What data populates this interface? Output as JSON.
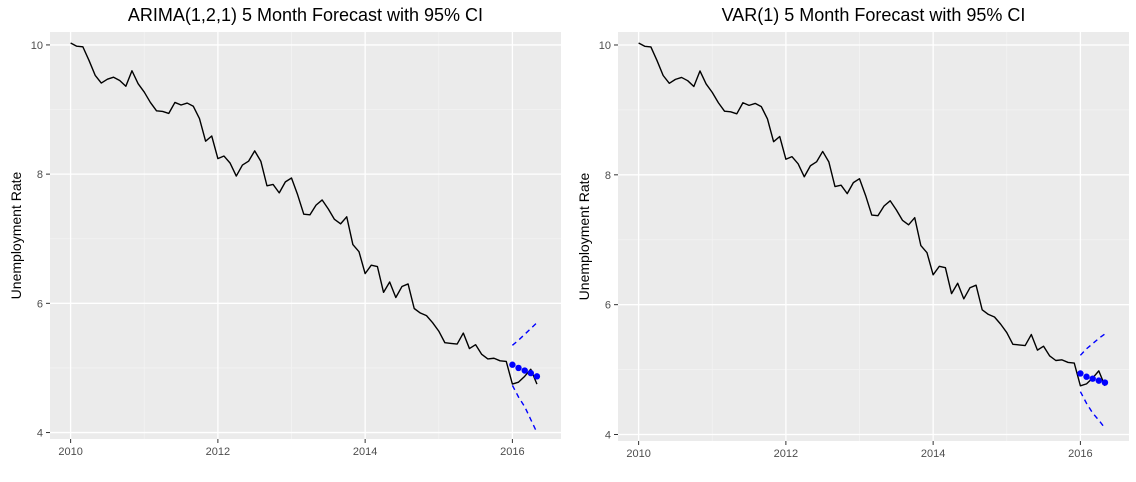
{
  "colors": {
    "panel_bg": "#EBEBEB",
    "grid_major": "#FFFFFF",
    "grid_minor": "#F3F3F3",
    "observed_line": "#000000",
    "forecast_points": "#0000FF",
    "ci_lines": "#0000FF",
    "tick_label": "#4D4D4D",
    "title": "#000000"
  },
  "chart_data": [
    {
      "type": "line",
      "title": "ARIMA(1,2,1) 5 Month Forecast with 95% CI",
      "xlabel": "",
      "ylabel": "Unemployment Rate",
      "xlim": [
        2009.72,
        2016.66
      ],
      "ylim": [
        3.9,
        10.2
      ],
      "xticks": [
        2010,
        2012,
        2014,
        2016
      ],
      "xtick_labels": [
        "2010",
        "2012",
        "2014",
        "2016"
      ],
      "yticks": [
        4,
        6,
        8,
        10
      ],
      "ytick_labels": [
        "4",
        "6",
        "8",
        "10"
      ],
      "grid": true,
      "legend": "none",
      "series": [
        {
          "role": "observed",
          "style": "solid",
          "x_start": 2010.0,
          "x_step": 0.08333,
          "values": [
            10.03,
            9.98,
            9.97,
            9.76,
            9.53,
            9.41,
            9.47,
            9.5,
            9.45,
            9.36,
            9.6,
            9.4,
            9.27,
            9.11,
            8.98,
            8.97,
            8.94,
            9.11,
            9.07,
            9.1,
            9.05,
            8.86,
            8.51,
            8.59,
            8.24,
            8.28,
            8.17,
            7.97,
            8.14,
            8.2,
            8.36,
            8.2,
            7.82,
            7.84,
            7.71,
            7.88,
            7.94,
            7.68,
            7.38,
            7.37,
            7.52,
            7.6,
            7.46,
            7.3,
            7.23,
            7.34,
            6.91,
            6.8,
            6.46,
            6.59,
            6.57,
            6.17,
            6.33,
            6.09,
            6.26,
            6.3,
            5.92,
            5.85,
            5.81,
            5.7,
            5.57,
            5.39,
            5.38,
            5.37,
            5.54,
            5.3,
            5.36,
            5.21,
            5.14,
            5.15,
            5.11,
            5.1,
            4.75,
            4.78,
            4.87,
            4.98,
            4.75
          ]
        },
        {
          "role": "forecast",
          "style": "points",
          "x": [
            2016.0,
            2016.083,
            2016.167,
            2016.25,
            2016.333
          ],
          "values": [
            5.05,
            5.0,
            4.96,
            4.92,
            4.87
          ]
        },
        {
          "role": "ci_upper",
          "style": "dashed",
          "x": [
            2016.0,
            2016.083,
            2016.167,
            2016.25,
            2016.333
          ],
          "values": [
            5.35,
            5.43,
            5.52,
            5.61,
            5.7
          ]
        },
        {
          "role": "ci_lower",
          "style": "dashed",
          "x": [
            2016.0,
            2016.083,
            2016.167,
            2016.25,
            2016.333
          ],
          "values": [
            4.73,
            4.55,
            4.4,
            4.2,
            4.0
          ]
        }
      ]
    },
    {
      "type": "line",
      "title": "VAR(1) 5 Month Forecast with 95% CI",
      "xlabel": "",
      "ylabel": "Unemployment Rate",
      "xlim": [
        2009.72,
        2016.66
      ],
      "ylim": [
        3.9,
        10.2
      ],
      "xticks": [
        2010,
        2012,
        2014,
        2016
      ],
      "xtick_labels": [
        "2010",
        "2012",
        "2014",
        "2016"
      ],
      "yticks": [
        4,
        6,
        8,
        10
      ],
      "ytick_labels": [
        "4",
        "6",
        "8",
        "10"
      ],
      "grid": true,
      "legend": "none",
      "series": [
        {
          "role": "observed",
          "style": "solid",
          "x_start": 2010.0,
          "x_step": 0.08333,
          "values": [
            10.03,
            9.98,
            9.97,
            9.76,
            9.53,
            9.41,
            9.47,
            9.5,
            9.45,
            9.36,
            9.6,
            9.4,
            9.27,
            9.11,
            8.98,
            8.97,
            8.94,
            9.11,
            9.07,
            9.1,
            9.05,
            8.86,
            8.51,
            8.59,
            8.24,
            8.28,
            8.17,
            7.97,
            8.14,
            8.2,
            8.36,
            8.2,
            7.82,
            7.84,
            7.71,
            7.88,
            7.94,
            7.68,
            7.38,
            7.37,
            7.52,
            7.6,
            7.46,
            7.3,
            7.23,
            7.34,
            6.91,
            6.8,
            6.46,
            6.59,
            6.57,
            6.17,
            6.33,
            6.09,
            6.26,
            6.3,
            5.92,
            5.85,
            5.81,
            5.7,
            5.57,
            5.39,
            5.38,
            5.37,
            5.54,
            5.3,
            5.36,
            5.21,
            5.14,
            5.15,
            5.11,
            5.1,
            4.75,
            4.78,
            4.87,
            4.98,
            4.75
          ]
        },
        {
          "role": "forecast",
          "style": "points",
          "x": [
            2016.0,
            2016.083,
            2016.167,
            2016.25,
            2016.333
          ],
          "values": [
            4.94,
            4.89,
            4.86,
            4.83,
            4.8
          ]
        },
        {
          "role": "ci_upper",
          "style": "dashed",
          "x": [
            2016.0,
            2016.083,
            2016.167,
            2016.25,
            2016.333
          ],
          "values": [
            5.22,
            5.32,
            5.4,
            5.48,
            5.55
          ]
        },
        {
          "role": "ci_lower",
          "style": "dashed",
          "x": [
            2016.0,
            2016.083,
            2016.167,
            2016.25,
            2016.333
          ],
          "values": [
            4.66,
            4.48,
            4.33,
            4.22,
            4.1
          ]
        }
      ]
    }
  ]
}
